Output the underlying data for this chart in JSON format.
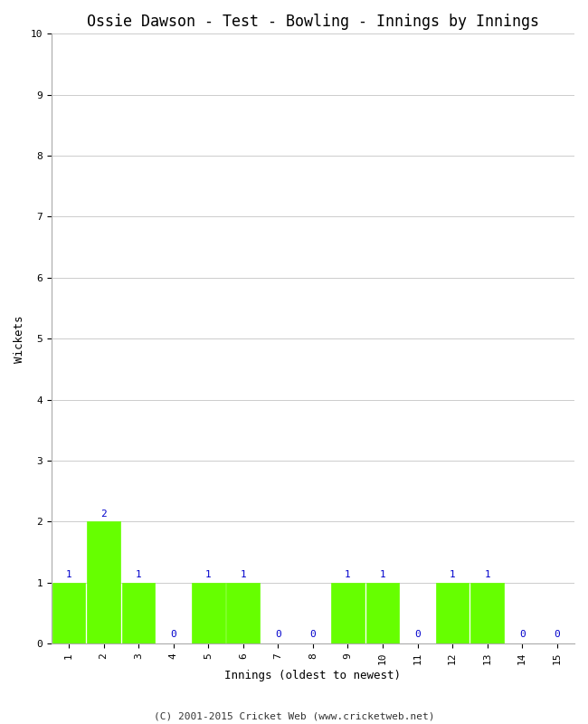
{
  "title": "Ossie Dawson - Test - Bowling - Innings by Innings",
  "xlabel": "Innings (oldest to newest)",
  "ylabel": "Wickets",
  "bar_color": "#66ff00",
  "bar_edge_color": "#66ff00",
  "categories": [
    "1",
    "2",
    "3",
    "4",
    "5",
    "6",
    "7",
    "8",
    "9",
    "10",
    "11",
    "12",
    "13",
    "14",
    "15"
  ],
  "values": [
    1,
    2,
    1,
    0,
    1,
    1,
    0,
    0,
    1,
    1,
    0,
    1,
    1,
    0,
    0
  ],
  "ylim": [
    0,
    10
  ],
  "yticks": [
    0,
    1,
    2,
    3,
    4,
    5,
    6,
    7,
    8,
    9,
    10
  ],
  "annotation_color": "#0000cc",
  "annotation_fontsize": 8,
  "title_fontsize": 12,
  "label_fontsize": 9,
  "tick_fontsize": 8,
  "footer": "(C) 2001-2015 Cricket Web (www.cricketweb.net)",
  "footer_fontsize": 8,
  "background_color": "#ffffff",
  "grid_color": "#cccccc",
  "bar_width": 0.95
}
